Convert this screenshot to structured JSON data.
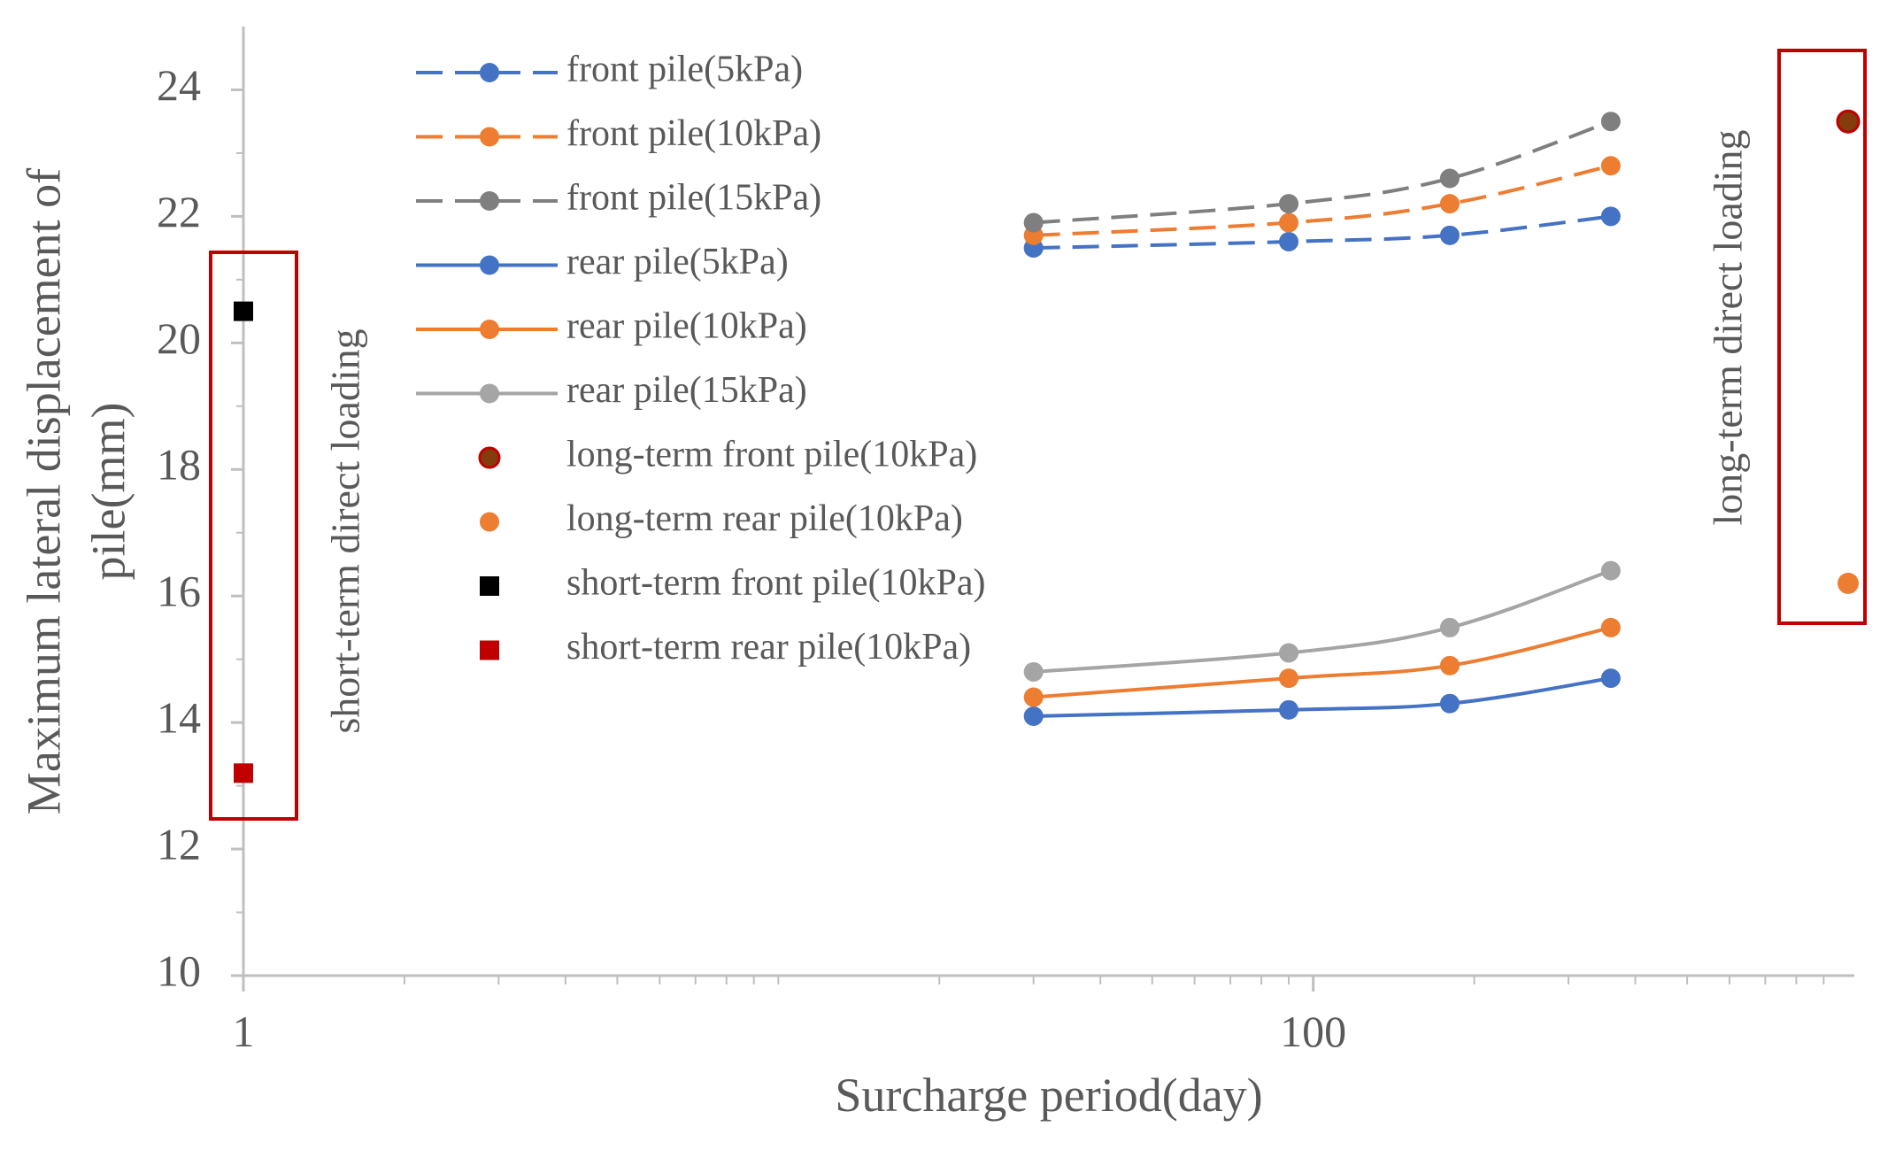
{
  "chart_data": {
    "type": "line",
    "xscale": "log",
    "xlim": [
      1,
      1000
    ],
    "ylim": [
      10,
      25
    ],
    "xticks": [
      {
        "value": 1,
        "label": "1"
      },
      {
        "value": 100,
        "label": "100"
      }
    ],
    "yticks": [
      {
        "value": 10,
        "label": "10"
      },
      {
        "value": 12,
        "label": "12"
      },
      {
        "value": 14,
        "label": "14"
      },
      {
        "value": 16,
        "label": "16"
      },
      {
        "value": 18,
        "label": "18"
      },
      {
        "value": 20,
        "label": "20"
      },
      {
        "value": 22,
        "label": "22"
      },
      {
        "value": 24,
        "label": "24"
      }
    ],
    "xlabel": "Surcharge period(day)",
    "ylabel_line1": "Maximum lateral displacement of",
    "ylabel_line2": "pile(mm)",
    "grid": false,
    "series": [
      {
        "name": "front pile(5kPa)",
        "style": "dashed",
        "color": "#4472C4",
        "x": [
          30,
          90,
          180,
          360
        ],
        "values": [
          21.5,
          21.6,
          21.7,
          22.0
        ]
      },
      {
        "name": "front pile(10kPa)",
        "style": "dashed",
        "color": "#ED7D31",
        "x": [
          30,
          90,
          180,
          360
        ],
        "values": [
          21.7,
          21.9,
          22.2,
          22.8
        ]
      },
      {
        "name": "front pile(15kPa)",
        "style": "dashed",
        "color": "#7F7F7F",
        "x": [
          30,
          90,
          180,
          360
        ],
        "values": [
          21.9,
          22.2,
          22.6,
          23.5
        ]
      },
      {
        "name": "rear pile(5kPa)",
        "style": "solid",
        "color": "#4472C4",
        "x": [
          30,
          90,
          180,
          360
        ],
        "values": [
          14.1,
          14.2,
          14.3,
          14.7
        ]
      },
      {
        "name": "rear pile(10kPa)",
        "style": "solid",
        "color": "#ED7D31",
        "x": [
          30,
          90,
          180,
          360
        ],
        "values": [
          14.4,
          14.7,
          14.9,
          15.5
        ]
      },
      {
        "name": "rear pile(15kPa)",
        "style": "solid",
        "color": "#A5A5A5",
        "x": [
          30,
          90,
          180,
          360
        ],
        "values": [
          14.8,
          15.1,
          15.5,
          16.4
        ]
      },
      {
        "name": "long-term front pile(10kPa)",
        "style": "marker",
        "marker": "circle",
        "color": "#C00000",
        "marker_fill": "#843C0C",
        "x": [
          1000
        ],
        "values": [
          23.5
        ]
      },
      {
        "name": "long-term rear pile(10kPa)",
        "style": "marker",
        "marker": "circle",
        "color": "#ED7D31",
        "x": [
          1000
        ],
        "values": [
          16.2
        ]
      },
      {
        "name": "short-term front pile(10kPa)",
        "style": "marker",
        "marker": "square",
        "color": "#000000",
        "x": [
          1
        ],
        "values": [
          20.5
        ]
      },
      {
        "name": "short-term rear pile(10kPa)",
        "style": "marker",
        "marker": "square",
        "color": "#C00000",
        "x": [
          1
        ],
        "values": [
          13.2
        ]
      }
    ],
    "annotations": [
      {
        "text": "short-term direct loading",
        "box_color": "#C00000"
      },
      {
        "text": "long-term direct loading",
        "box_color": "#C00000"
      }
    ],
    "legend": "top-left inside plot"
  }
}
